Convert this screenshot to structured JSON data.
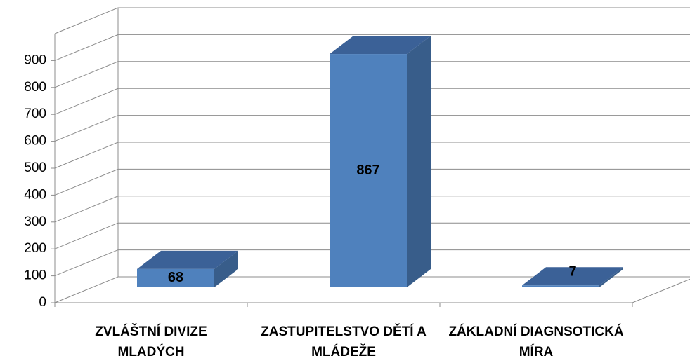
{
  "chart_data": {
    "type": "bar3d",
    "categories": [
      "ZVLÁŠTNÍ DIVIZE MLADÝCH",
      "ZASTUPITELSTVO DĚTÍ A MLÁDEŽE",
      "ZÁKLADNÍ DIAGNSOTICKÁ MÍRA"
    ],
    "values": [
      68,
      867,
      7
    ],
    "color": "#4f81bd",
    "ylim": [
      0,
      1000
    ],
    "yticks": [
      0,
      100,
      200,
      300,
      400,
      500,
      600,
      700,
      800,
      900
    ],
    "grid": true
  }
}
